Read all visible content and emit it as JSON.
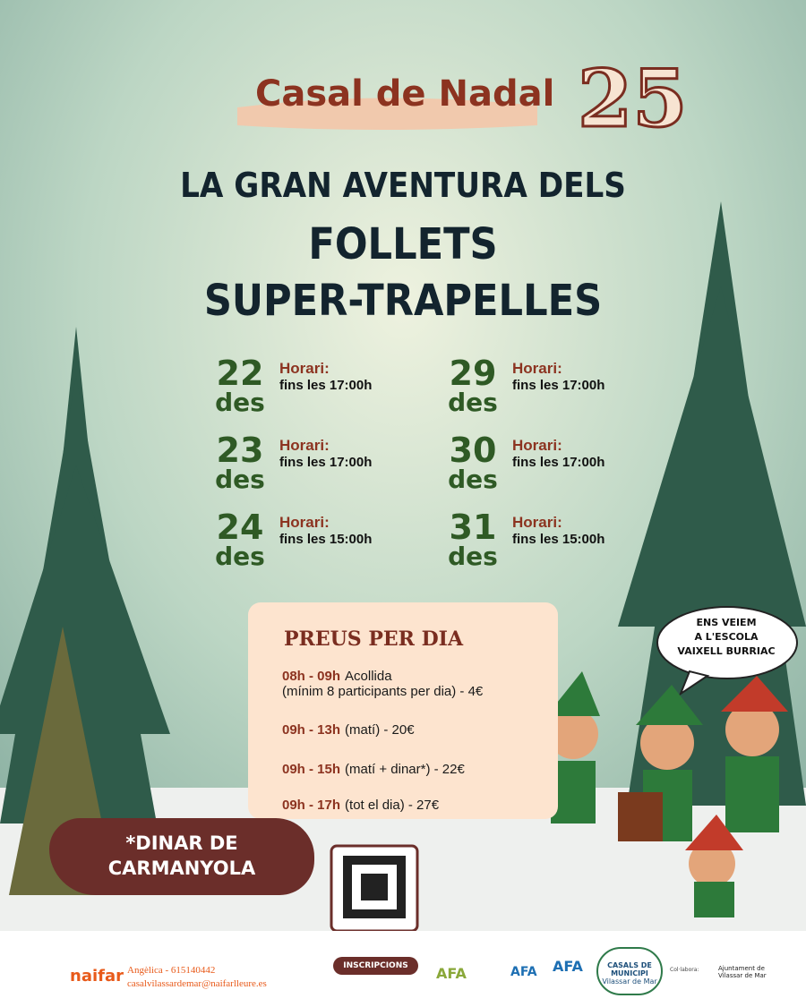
{
  "header": {
    "title": "Casal de Nadal",
    "year": "25"
  },
  "headline": {
    "line1": "LA GRAN AVENTURA DELS",
    "line2": "FOLLETS",
    "line3": "SUPER-TRAPELLES"
  },
  "schedule": [
    {
      "day": "22",
      "month": "des",
      "label": "Horari:",
      "hours": "fins les 17:00h"
    },
    {
      "day": "29",
      "month": "des",
      "label": "Horari:",
      "hours": "fins les 17:00h"
    },
    {
      "day": "23",
      "month": "des",
      "label": "Horari:",
      "hours": "fins les 17:00h"
    },
    {
      "day": "30",
      "month": "des",
      "label": "Horari:",
      "hours": "fins les 17:00h"
    },
    {
      "day": "24",
      "month": "des",
      "label": "Horari:",
      "hours": "fins les 15:00h"
    },
    {
      "day": "31",
      "month": "des",
      "label": "Horari:",
      "hours": "fins les 15:00h"
    }
  ],
  "prices": {
    "title": "PREUS PER DIA",
    "items": [
      {
        "time": "08h - 09h",
        "text": "Acollida",
        "note": "(mínim 8 participants per dia) - 4€"
      },
      {
        "time": "09h - 13h",
        "text": "(matí) - 20€"
      },
      {
        "time": "09h - 15h",
        "text": "(matí + dinar*) - 22€"
      },
      {
        "time": "09h - 17h",
        "text": "(tot el dia) - 27€"
      }
    ]
  },
  "note": {
    "line1": "*DINAR DE",
    "line2": "CARMANYOLA"
  },
  "speech": {
    "line1": "ENS VEIEM",
    "line2": "A L'ESCOLA",
    "line3": "VAIXELL BURRIAC"
  },
  "qr": {
    "label": "INSCRIPCIONS"
  },
  "footer": {
    "brand": "naifar",
    "contact": "Angèlica - 615140442",
    "email": "casalvilassardemar@naifarlleure.es",
    "logos": [
      "AFA",
      "AFA",
      "AFA"
    ],
    "casals": "CASALS DE MUNICIPI",
    "casals_sub": "Vilassar de Mar",
    "collab": "Col·labora:",
    "council": "Ajuntament de Vilassar de Mar"
  }
}
